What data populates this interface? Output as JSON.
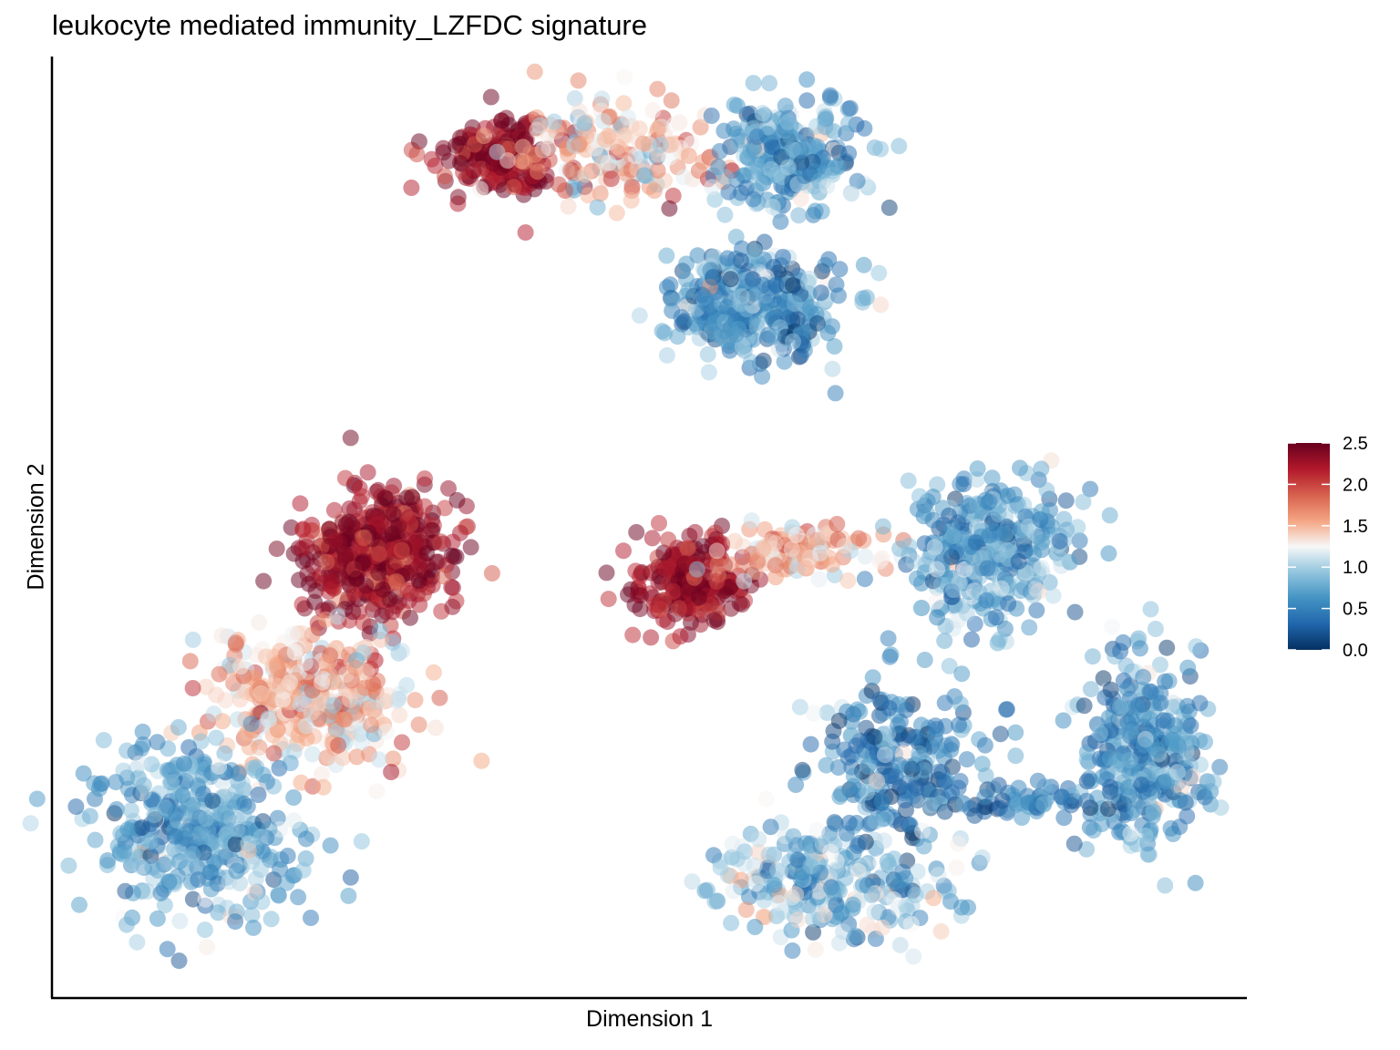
{
  "chart_data": {
    "type": "scatter",
    "title": "leukocyte mediated immunity_LZFDC signature",
    "xlabel": "Dimension 1",
    "ylabel": "Dimension 2",
    "xlim": [
      0,
      100
    ],
    "ylim": [
      0,
      100
    ],
    "axis_ticks": false,
    "grid": false,
    "legend_position": "right",
    "color_scale": {
      "min": 0.0,
      "max": 2.5,
      "ticks": [
        "0.0",
        "0.5",
        "1.0",
        "1.5",
        "2.0",
        "2.5"
      ],
      "colors": [
        "#053061",
        "#2166ac",
        "#4393c3",
        "#92c5de",
        "#f7f7f7",
        "#f4a582",
        "#d6604d",
        "#b2182b",
        "#67001f"
      ]
    },
    "point_opacity": 0.5,
    "clusters": [
      {
        "cx": 37.5,
        "cy": 90.5,
        "sx": 3.0,
        "sy": 2.6,
        "n": 170,
        "mean": 2.35,
        "sd": 0.2
      },
      {
        "cx": 47.5,
        "cy": 91.5,
        "sx": 5.0,
        "sy": 3.2,
        "n": 190,
        "mean": 1.45,
        "sd": 0.35
      },
      {
        "cx": 63.0,
        "cy": 91.0,
        "sx": 3.6,
        "sy": 3.8,
        "n": 260,
        "mean": 0.7,
        "sd": 0.3
      },
      {
        "cx": 59.5,
        "cy": 74.5,
        "sx": 4.3,
        "sy": 3.4,
        "n": 360,
        "mean": 0.62,
        "sd": 0.3
      },
      {
        "cx": 27.0,
        "cy": 47.5,
        "sx": 3.8,
        "sy": 4.3,
        "n": 440,
        "mean": 2.3,
        "sd": 0.25
      },
      {
        "cx": 21.5,
        "cy": 32.0,
        "sx": 5.2,
        "sy": 4.2,
        "n": 380,
        "mean": 1.45,
        "sd": 0.3
      },
      {
        "cx": 11.5,
        "cy": 17.0,
        "sx": 5.0,
        "sy": 6.0,
        "n": 400,
        "mean": 0.75,
        "sd": 0.3
      },
      {
        "cx": 54.0,
        "cy": 44.0,
        "sx": 3.0,
        "sy": 2.8,
        "n": 230,
        "mean": 2.3,
        "sd": 0.2
      },
      {
        "cx": 63.5,
        "cy": 47.5,
        "sx": 4.0,
        "sy": 1.6,
        "n": 120,
        "mean": 1.5,
        "sd": 0.25
      },
      {
        "cx": 80.0,
        "cy": 47.0,
        "sx": 4.0,
        "sy": 5.2,
        "n": 330,
        "mean": 0.72,
        "sd": 0.3
      },
      {
        "cx": 93.5,
        "cy": 25.0,
        "sx": 3.2,
        "sy": 6.5,
        "n": 340,
        "mean": 0.62,
        "sd": 0.3
      },
      {
        "cx": 72.0,
        "cy": 24.5,
        "sx": 4.5,
        "sy": 5.5,
        "n": 230,
        "mean": 0.45,
        "sd": 0.3
      },
      {
        "cx": 66.0,
        "cy": 11.0,
        "sx": 6.0,
        "sy": 3.5,
        "n": 260,
        "mean": 0.85,
        "sd": 0.35
      },
      {
        "cx": 82.5,
        "cy": 20.5,
        "sx": 4.0,
        "sy": 1.3,
        "n": 60,
        "mean": 0.5,
        "sd": 0.25
      }
    ]
  }
}
